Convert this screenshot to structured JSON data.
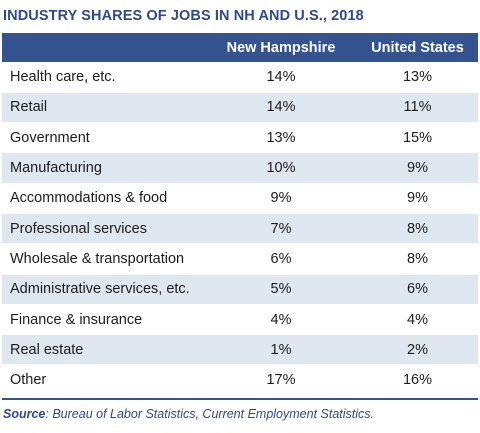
{
  "title": "INDUSTRY SHARES OF JOBS IN NH AND U.S., 2018",
  "source_label": "Source",
  "source_text": ": Bureau of Labor Statistics, Current Employment Statistics.",
  "colors": {
    "header_bg": "#34538f",
    "stripe": "#dfe7f1",
    "title": "#2e4a88"
  },
  "chart_data": {
    "type": "table",
    "title": "INDUSTRY SHARES OF JOBS IN NH AND U.S., 2018",
    "columns": [
      "",
      "New Hampshire",
      "United States"
    ],
    "rows": [
      {
        "industry": "Health care, etc.",
        "nh": "14%",
        "us": "13%"
      },
      {
        "industry": "Retail",
        "nh": "14%",
        "us": "11%"
      },
      {
        "industry": "Government",
        "nh": "13%",
        "us": "15%"
      },
      {
        "industry": "Manufacturing",
        "nh": "10%",
        "us": "9%"
      },
      {
        "industry": "Accommodations & food",
        "nh": "9%",
        "us": "9%"
      },
      {
        "industry": "Professional services",
        "nh": "7%",
        "us": "8%"
      },
      {
        "industry": "Wholesale & transportation",
        "nh": "6%",
        "us": "8%"
      },
      {
        "industry": "Administrative services, etc.",
        "nh": "5%",
        "us": "6%"
      },
      {
        "industry": "Finance & insurance",
        "nh": "4%",
        "us": "4%"
      },
      {
        "industry": "Real estate",
        "nh": "1%",
        "us": "2%"
      },
      {
        "industry": "Other",
        "nh": "17%",
        "us": "16%"
      }
    ]
  }
}
